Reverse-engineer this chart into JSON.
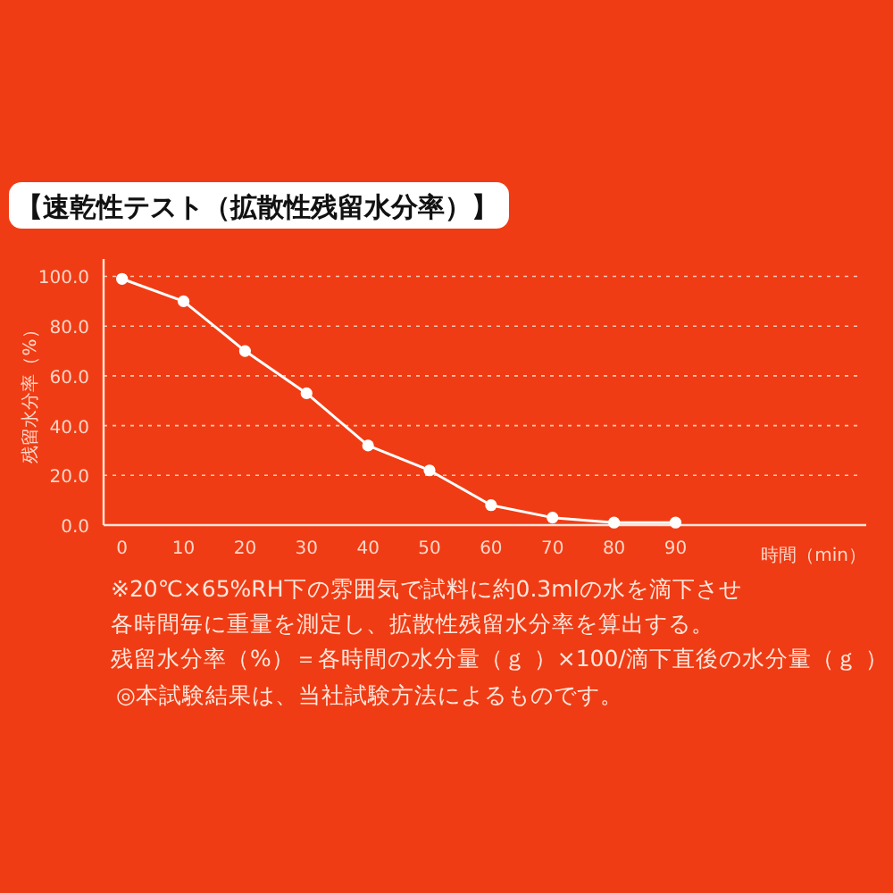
{
  "chart_data": {
    "type": "line",
    "title": "【速乾性テスト（拡散性残留水分率）】",
    "xlabel": "時間（min）",
    "ylabel": "残留水分率（%）",
    "x": [
      0,
      10,
      20,
      30,
      40,
      50,
      60,
      70,
      80,
      90
    ],
    "values": [
      99,
      90,
      70,
      53,
      32,
      22,
      8,
      3,
      1,
      1
    ],
    "color": "#ffffff",
    "marker": "circle",
    "line_style": "solid",
    "grid": "y",
    "xlim": [
      -3,
      121
    ],
    "ylim": [
      0,
      107
    ],
    "xticks": [
      0,
      10,
      20,
      30,
      40,
      50,
      60,
      70,
      80,
      90
    ],
    "yticks": [
      {
        "value": 0,
        "label": "0.0"
      },
      {
        "value": 20,
        "label": "20.0"
      },
      {
        "value": 40,
        "label": "40.0"
      },
      {
        "value": 60,
        "label": "60.0"
      },
      {
        "value": 80,
        "label": "80.0"
      },
      {
        "value": 100,
        "label": "100.0"
      }
    ],
    "annotations": [
      "※20℃×65%RH下の雰囲気で試料に約0.3mlの水を滴下させ",
      "各時間毎に重量を測定し、拡散性残留水分率を算出する。",
      "残留水分率（%）＝各時間の水分量（ｇ ）×100/滴下直後の水分量（ｇ ）",
      "◎本試験結果は、当社試験方法によるものです。"
    ]
  }
}
